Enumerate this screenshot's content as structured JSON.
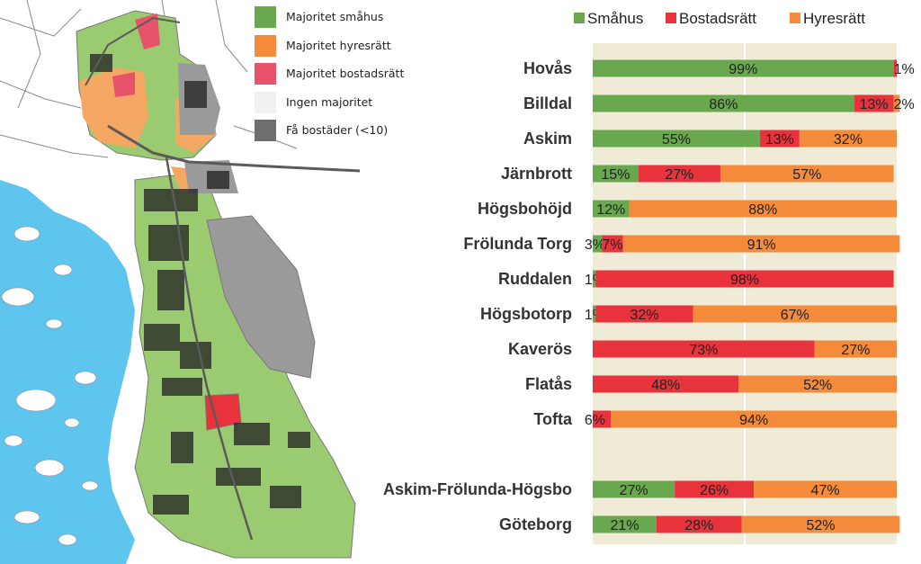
{
  "colors": {
    "smahus": "#6aa84f",
    "bostadsratt": "#e8323c",
    "hyresratt": "#f38b3a",
    "ingen": "#eeeeee",
    "fa": "#6f6f6f",
    "plot_bg": "#efebd6",
    "water": "#5ec5ee",
    "green_area": "#9bcb71",
    "dark_area": "#9a9a9a",
    "building": "#1f1f1f"
  },
  "map_legend": [
    {
      "label": "Majoritet småhus",
      "color": "#6aa84f"
    },
    {
      "label": "Majoritet hyresrätt",
      "color": "#f38b3a"
    },
    {
      "label": "Majoritet bostadsrätt",
      "color": "#e8536b"
    },
    {
      "label": "Ingen majoritet",
      "color": "#f1f1f1"
    },
    {
      "label": "Få bostäder (<10)",
      "color": "#6f6f6f"
    }
  ],
  "chart_data": {
    "type": "bar",
    "orientation": "horizontal",
    "stacked": true,
    "percent": true,
    "xlim": [
      0,
      100
    ],
    "legend_position": "top",
    "series": [
      {
        "name": "Småhus",
        "color": "#6aa84f"
      },
      {
        "name": "Bostadsrätt",
        "color": "#e8323c"
      },
      {
        "name": "Hyresrätt",
        "color": "#f38b3a"
      }
    ],
    "rows": [
      {
        "label": "Hovås",
        "values": [
          99,
          1,
          0
        ],
        "labels": [
          "99%",
          "1%",
          ""
        ]
      },
      {
        "label": "Billdal",
        "values": [
          86,
          13,
          2
        ],
        "labels": [
          "86%",
          "13%",
          "2%"
        ]
      },
      {
        "label": "Askim",
        "values": [
          55,
          13,
          32
        ],
        "labels": [
          "55%",
          "13%",
          "32%"
        ]
      },
      {
        "label": "Järnbrott",
        "values": [
          15,
          27,
          57
        ],
        "labels": [
          "15%",
          "27%",
          "57%"
        ]
      },
      {
        "label": "Högsbohöjd",
        "values": [
          12,
          0,
          88
        ],
        "labels": [
          "12%",
          "",
          "88%"
        ]
      },
      {
        "label": "Frölunda Torg",
        "values": [
          3,
          7,
          91
        ],
        "labels": [
          "3%",
          "7%",
          "91%"
        ]
      },
      {
        "label": "Ruddalen",
        "values": [
          1,
          98,
          0
        ],
        "labels": [
          "1%",
          "98%",
          ""
        ]
      },
      {
        "label": "Högsbotorp",
        "values": [
          1,
          32,
          67
        ],
        "labels": [
          "1%",
          "32%",
          "67%"
        ]
      },
      {
        "label": "Kaverös",
        "values": [
          0,
          73,
          27
        ],
        "labels": [
          "",
          "73%",
          "27%"
        ]
      },
      {
        "label": "Flatås",
        "values": [
          0,
          48,
          52
        ],
        "labels": [
          "",
          "48%",
          "52%"
        ]
      },
      {
        "label": "Tofta",
        "values": [
          0,
          6,
          94
        ],
        "labels": [
          "",
          "6%",
          "94%"
        ]
      },
      {
        "label": "",
        "values": [
          0,
          0,
          0
        ],
        "labels": [
          "",
          "",
          ""
        ]
      },
      {
        "label": "Askim-Frölunda-Högsbo",
        "values": [
          27,
          26,
          47
        ],
        "labels": [
          "27%",
          "26%",
          "47%"
        ]
      },
      {
        "label": "Göteborg",
        "values": [
          21,
          28,
          52
        ],
        "labels": [
          "21%",
          "28%",
          "52%"
        ]
      }
    ]
  }
}
